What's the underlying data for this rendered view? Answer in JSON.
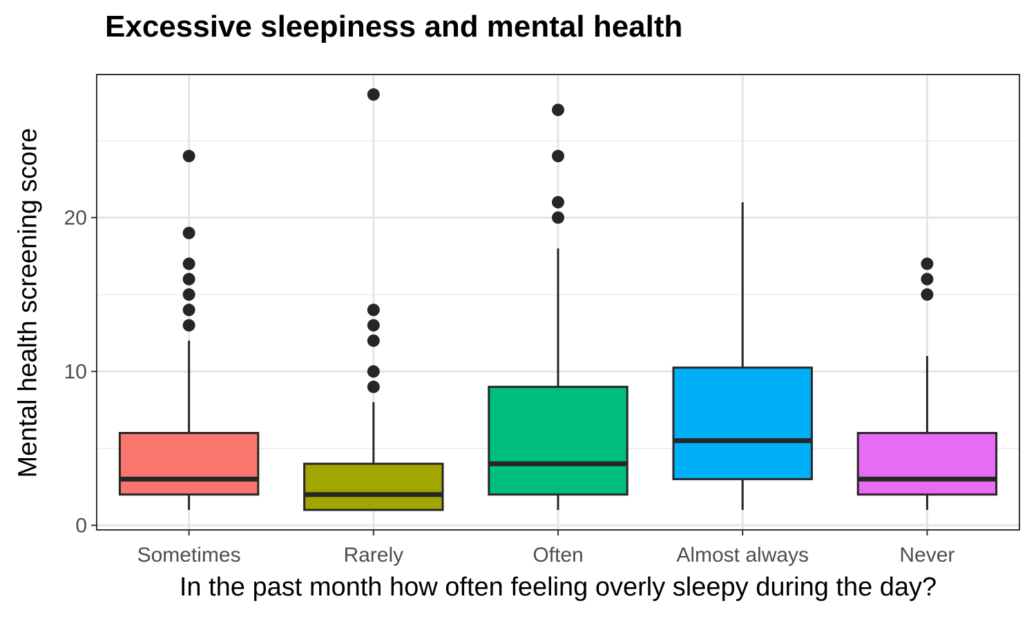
{
  "chart_data": {
    "type": "boxplot",
    "title": "Excessive sleepiness and mental health",
    "xlabel": "In the past month how often feeling overly sleepy during the day?",
    "ylabel": "Mental health screening score",
    "ylim": [
      -0.3,
      29.3
    ],
    "yticks": [
      0,
      10,
      20
    ],
    "grid": true,
    "legend": "none",
    "categories": [
      "Sometimes",
      "Rarely",
      "Often",
      "Almost always",
      "Never"
    ],
    "boxes": [
      {
        "category": "Sometimes",
        "color": "#F8766D",
        "min": 1,
        "q1": 2,
        "median": 3,
        "q3": 6,
        "max": 12,
        "outliers": [
          13,
          14,
          15,
          16,
          17,
          19,
          24
        ]
      },
      {
        "category": "Rarely",
        "color": "#A3A500",
        "min": 1,
        "q1": 1,
        "median": 2,
        "q3": 4,
        "max": 8,
        "outliers": [
          9,
          10,
          12,
          13,
          14,
          28
        ]
      },
      {
        "category": "Often",
        "color": "#00BF7D",
        "min": 1,
        "q1": 2,
        "median": 4,
        "q3": 9,
        "max": 18,
        "outliers": [
          20,
          21,
          24,
          27
        ]
      },
      {
        "category": "Almost always",
        "color": "#00B0F6",
        "min": 1,
        "q1": 3,
        "median": 5.5,
        "q3": 10.25,
        "max": 21,
        "outliers": []
      },
      {
        "category": "Never",
        "color": "#E76BF3",
        "min": 1,
        "q1": 2,
        "median": 3,
        "q3": 6,
        "max": 11,
        "outliers": [
          15,
          16,
          17
        ]
      }
    ]
  }
}
